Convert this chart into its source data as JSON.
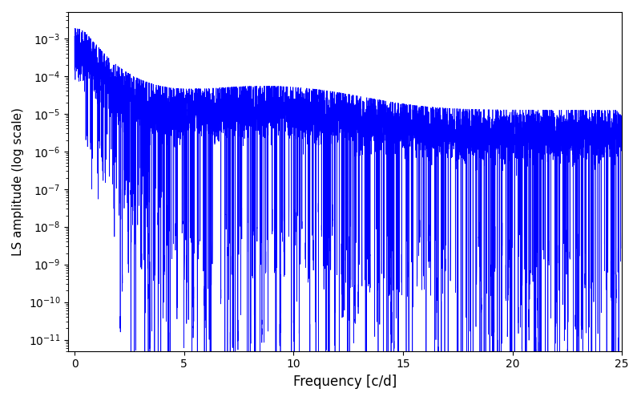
{
  "title": "",
  "xlabel": "Frequency [c/d]",
  "ylabel": "LS amplitude (log scale)",
  "xlim": [
    -0.3,
    25
  ],
  "ylim": [
    5e-12,
    0.005
  ],
  "yscale": "log",
  "line_color": "#0000ff",
  "line_width": 0.5,
  "xticks": [
    0,
    5,
    10,
    15,
    20,
    25
  ],
  "background_color": "#ffffff",
  "figsize": [
    8.0,
    5.0
  ],
  "dpi": 100,
  "seed": 12345,
  "n_points": 10000,
  "freq_max": 25.0
}
